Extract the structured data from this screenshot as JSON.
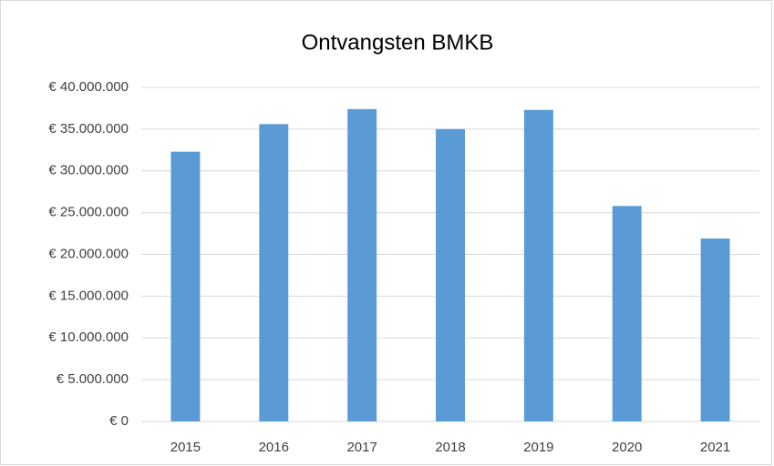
{
  "chart_data": {
    "type": "bar",
    "title": "Ontvangsten BMKB",
    "categories": [
      "2015",
      "2016",
      "2017",
      "2018",
      "2019",
      "2020",
      "2021"
    ],
    "values": [
      32300000,
      35600000,
      37400000,
      35000000,
      37300000,
      25800000,
      21900000
    ],
    "color": "#5b9bd5",
    "ylim": [
      0,
      40000000
    ],
    "yticks": [
      {
        "value": 0,
        "label": "€ 0"
      },
      {
        "value": 5000000,
        "label": "€ 5.000.000"
      },
      {
        "value": 10000000,
        "label": "€ 10.000.000"
      },
      {
        "value": 15000000,
        "label": "€ 15.000.000"
      },
      {
        "value": 20000000,
        "label": "€ 20.000.000"
      },
      {
        "value": 25000000,
        "label": "€ 25.000.000"
      },
      {
        "value": 30000000,
        "label": "€ 30.000.000"
      },
      {
        "value": 35000000,
        "label": "€ 35.000.000"
      },
      {
        "value": 40000000,
        "label": "€ 40.000.000"
      }
    ],
    "grid": true
  }
}
